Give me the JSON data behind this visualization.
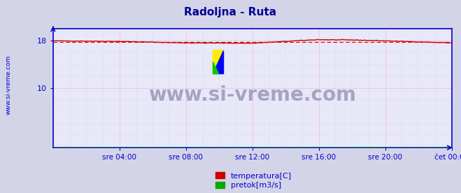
{
  "title": "Radoljna - Ruta",
  "title_color": "#000099",
  "bg_color": "#d4d4e8",
  "plot_bg_color": "#e8e8f8",
  "watermark": "www.si-vreme.com",
  "yticks": [
    10,
    18
  ],
  "ytick_labels": [
    "10",
    "18"
  ],
  "ylim": [
    0,
    20
  ],
  "xlim": [
    0,
    288
  ],
  "x_tick_positions": [
    48,
    96,
    144,
    192,
    240,
    288
  ],
  "x_tick_labels": [
    "sre 04:00",
    "sre 08:00",
    "sre 12:00",
    "sre 16:00",
    "sre 20:00",
    "čet 00:00"
  ],
  "grid_color_major": "#ff8888",
  "grid_color_minor": "#bbbbcc",
  "temp_color": "#cc0000",
  "temp_avg_color": "#cc0000",
  "flow_color": "#00aa00",
  "axis_color": "#0000cc",
  "legend_temp_label": "temperatura[C]",
  "legend_flow_label": "pretok[m3/s]",
  "sidebar_text": "www.si-vreme.com",
  "sidebar_color": "#0000cc",
  "watermark_color": "#9999bb",
  "title_fontsize": 11
}
